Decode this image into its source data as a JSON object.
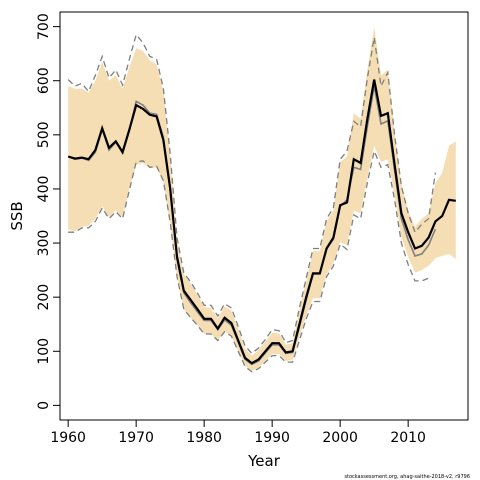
{
  "chart_data": {
    "type": "line",
    "xlabel": "Year",
    "ylabel": "SSB",
    "xlim": [
      1958.8,
      2018.8
    ],
    "ylim": [
      -27,
      727
    ],
    "xticks": [
      1960,
      1970,
      1980,
      1990,
      2000,
      2010
    ],
    "yticks": [
      0,
      100,
      200,
      300,
      400,
      500,
      600,
      700
    ],
    "grid": false,
    "legend": "none",
    "colors": {
      "band": "#f5deb3",
      "estimate": "#000000",
      "previous": "#7f7f7f"
    },
    "x": [
      1960,
      1961,
      1962,
      1963,
      1964,
      1965,
      1966,
      1967,
      1968,
      1969,
      1970,
      1971,
      1972,
      1973,
      1974,
      1975,
      1976,
      1977,
      1978,
      1979,
      1980,
      1981,
      1982,
      1983,
      1984,
      1985,
      1986,
      1987,
      1988,
      1989,
      1990,
      1991,
      1992,
      1993,
      1994,
      1995,
      1996,
      1997,
      1998,
      1999,
      2000,
      2001,
      2002,
      2003,
      2004,
      2005,
      2006,
      2007,
      2008,
      2009,
      2010,
      2011,
      2012,
      2013,
      2014,
      2015,
      2016,
      2017
    ],
    "series": [
      {
        "role": "estimate",
        "values": [
          460,
          456,
          458,
          455,
          472,
          512,
          476,
          488,
          468,
          510,
          555,
          548,
          537,
          534,
          490,
          400,
          275,
          212,
          195,
          178,
          160,
          160,
          142,
          162,
          152,
          120,
          88,
          78,
          85,
          100,
          115,
          115,
          98,
          100,
          150,
          200,
          244,
          244,
          290,
          310,
          370,
          375,
          455,
          448,
          530,
          602,
          535,
          540,
          445,
          355,
          320,
          290,
          295,
          310,
          340,
          350,
          380,
          378
        ]
      },
      {
        "role": "previous",
        "values": [
          460,
          455,
          457,
          453,
          468,
          510,
          472,
          486,
          466,
          508,
          562,
          555,
          540,
          538,
          495,
          405,
          270,
          208,
          190,
          173,
          157,
          157,
          140,
          158,
          148,
          117,
          85,
          76,
          82,
          97,
          112,
          112,
          96,
          98,
          145,
          195,
          243,
          243,
          290,
          307,
          368,
          380,
          440,
          436,
          516,
          590,
          520,
          526,
          435,
          345,
          306,
          276,
          280,
          296,
          326,
          null,
          null,
          null
        ]
      },
      {
        "role": "upper",
        "values": [
          590,
          585,
          585,
          578,
          600,
          635,
          600,
          610,
          585,
          625,
          660,
          655,
          638,
          630,
          580,
          460,
          305,
          242,
          225,
          205,
          182,
          180,
          160,
          183,
          175,
          142,
          105,
          92,
          102,
          118,
          134,
          133,
          112,
          115,
          176,
          230,
          285,
          285,
          340,
          360,
          450,
          460,
          540,
          530,
          620,
          700,
          610,
          620,
          505,
          410,
          360,
          330,
          345,
          355,
          410,
          430,
          480,
          488
        ]
      },
      {
        "role": "lower",
        "values": [
          325,
          322,
          330,
          332,
          345,
          368,
          348,
          360,
          348,
          400,
          445,
          448,
          438,
          440,
          412,
          335,
          236,
          177,
          162,
          148,
          132,
          132,
          120,
          137,
          128,
          100,
          73,
          64,
          70,
          82,
          95,
          95,
          82,
          84,
          125,
          165,
          198,
          198,
          242,
          262,
          302,
          296,
          360,
          355,
          420,
          480,
          450,
          455,
          388,
          310,
          275,
          245,
          250,
          258,
          272,
          276,
          280,
          270
        ]
      },
      {
        "role": "previous-upper",
        "values": [
          602,
          590,
          595,
          580,
          610,
          645,
          605,
          620,
          592,
          640,
          685,
          670,
          645,
          640,
          585,
          465,
          310,
          245,
          228,
          208,
          185,
          185,
          165,
          188,
          180,
          146,
          110,
          96,
          106,
          122,
          140,
          138,
          116,
          120,
          180,
          235,
          290,
          290,
          345,
          365,
          455,
          470,
          525,
          515,
          605,
          680,
          590,
          615,
          500,
          405,
          355,
          320,
          335,
          345,
          430,
          null,
          null,
          null
        ]
      },
      {
        "role": "previous-lower",
        "values": [
          320,
          320,
          328,
          328,
          340,
          365,
          345,
          358,
          345,
          398,
          450,
          452,
          440,
          442,
          415,
          338,
          238,
          178,
          162,
          148,
          132,
          132,
          120,
          136,
          128,
          100,
          72,
          62,
          68,
          80,
          92,
          92,
          80,
          80,
          120,
          160,
          192,
          192,
          238,
          258,
          298,
          288,
          352,
          345,
          412,
          470,
          440,
          445,
          380,
          300,
          260,
          230,
          230,
          235,
          null,
          null,
          null,
          null
        ]
      }
    ]
  },
  "footnote": "stockassessment.org, ahag-saithe-2018-v2, r9796"
}
